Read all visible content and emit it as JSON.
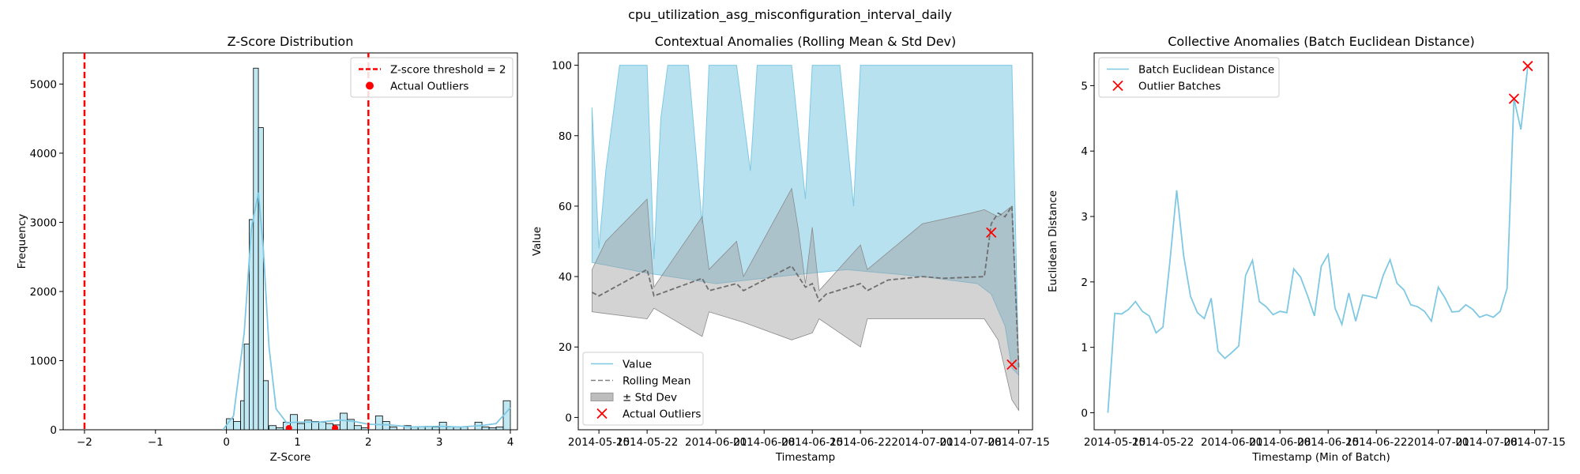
{
  "suptitle": "cpu_utilization_asg_misconfiguration_interval_daily",
  "colors": {
    "series": "#7ec8e3",
    "threshold": "#ff0000",
    "rolling": "#808080",
    "band": "#bdbdbd",
    "outlier": "#ff0000",
    "bar_fill": "#bfe8f2"
  },
  "chart_data": [
    {
      "type": "histogram",
      "title": "Z-Score Distribution",
      "xlabel": "Z-Score",
      "ylabel": "Frequency",
      "xlim": [
        -2.3,
        4.1
      ],
      "ylim": [
        0,
        5450
      ],
      "xticks": [
        -2,
        -1,
        0,
        1,
        2,
        3,
        4
      ],
      "xtick_labels": [
        "−2",
        "−1",
        "0",
        "1",
        "2",
        "3",
        "4"
      ],
      "yticks": [
        0,
        1000,
        2000,
        3000,
        4000,
        5000
      ],
      "bin_width": 0.1,
      "bins": [
        {
          "x0": 0.0,
          "count": 160
        },
        {
          "x0": 0.1,
          "count": 120
        },
        {
          "x0": 0.2,
          "count": 420
        },
        {
          "x0": 0.25,
          "count": 1240
        },
        {
          "x0": 0.32,
          "count": 3040
        },
        {
          "x0": 0.38,
          "count": 5230
        },
        {
          "x0": 0.45,
          "count": 4370
        },
        {
          "x0": 0.52,
          "count": 710
        },
        {
          "x0": 0.6,
          "count": 60
        },
        {
          "x0": 0.7,
          "count": 30
        },
        {
          "x0": 0.8,
          "count": 110
        },
        {
          "x0": 0.9,
          "count": 220
        },
        {
          "x0": 1.0,
          "count": 90
        },
        {
          "x0": 1.1,
          "count": 140
        },
        {
          "x0": 1.2,
          "count": 120
        },
        {
          "x0": 1.3,
          "count": 110
        },
        {
          "x0": 1.4,
          "count": 90
        },
        {
          "x0": 1.5,
          "count": 70
        },
        {
          "x0": 1.6,
          "count": 240
        },
        {
          "x0": 1.7,
          "count": 150
        },
        {
          "x0": 1.8,
          "count": 60
        },
        {
          "x0": 1.9,
          "count": 30
        },
        {
          "x0": 2.1,
          "count": 200
        },
        {
          "x0": 2.2,
          "count": 120
        },
        {
          "x0": 2.3,
          "count": 40
        },
        {
          "x0": 2.5,
          "count": 60
        },
        {
          "x0": 2.6,
          "count": 40
        },
        {
          "x0": 2.7,
          "count": 40
        },
        {
          "x0": 2.8,
          "count": 50
        },
        {
          "x0": 2.9,
          "count": 40
        },
        {
          "x0": 3.0,
          "count": 110
        },
        {
          "x0": 3.1,
          "count": 40
        },
        {
          "x0": 3.2,
          "count": 40
        },
        {
          "x0": 3.3,
          "count": 40
        },
        {
          "x0": 3.5,
          "count": 110
        },
        {
          "x0": 3.6,
          "count": 40
        },
        {
          "x0": 3.7,
          "count": 30
        },
        {
          "x0": 3.8,
          "count": 40
        },
        {
          "x0": 3.9,
          "count": 420
        }
      ],
      "kde": [
        [
          -0.05,
          0
        ],
        [
          0.1,
          200
        ],
        [
          0.25,
          1400
        ],
        [
          0.35,
          2900
        ],
        [
          0.45,
          3430
        ],
        [
          0.52,
          2600
        ],
        [
          0.6,
          1200
        ],
        [
          0.7,
          300
        ],
        [
          0.85,
          100
        ],
        [
          1.0,
          110
        ],
        [
          1.3,
          110
        ],
        [
          1.6,
          140
        ],
        [
          1.8,
          120
        ],
        [
          2.0,
          80
        ],
        [
          2.3,
          70
        ],
        [
          2.6,
          40
        ],
        [
          3.0,
          50
        ],
        [
          3.3,
          40
        ],
        [
          3.6,
          60
        ],
        [
          3.8,
          90
        ],
        [
          3.95,
          260
        ],
        [
          4.0,
          320
        ]
      ],
      "threshold_lines": [
        -2,
        2
      ],
      "outliers_x": [
        0.88,
        1.53
      ],
      "legend": [
        {
          "label": "Z-score threshold = 2",
          "kind": "dashed-line"
        },
        {
          "label": "Actual Outliers",
          "kind": "dot"
        }
      ],
      "legend_position": "upper right"
    },
    {
      "type": "line",
      "title": "Contextual Anomalies (Rolling Mean & Std Dev)",
      "xlabel": "Timestamp",
      "ylabel": "Value",
      "xlim": [
        "2014-05-12",
        "2014-07-17"
      ],
      "ylim": [
        -3.5,
        103.5
      ],
      "yticks": [
        0,
        20,
        40,
        60,
        80,
        100
      ],
      "xticks": [
        "2014-05-15",
        "2014-05-22",
        "2014-06-01",
        "2014-06-08",
        "2014-06-15",
        "2014-06-22",
        "2014-07-01",
        "2014-07-08",
        "2014-07-15"
      ],
      "xtick_labels": [
        "2014-05-15",
        "2014-05-22",
        "2014-06-01",
        "2014-06-08",
        "2014-06-15",
        "2014-06-22",
        "2014-07-01",
        "2014-07-08",
        "2014-07-15"
      ],
      "value_lower": [
        [
          "2014-05-14",
          44
        ],
        [
          "2014-05-22",
          41
        ],
        [
          "2014-06-01",
          38
        ],
        [
          "2014-06-10",
          40
        ],
        [
          "2014-06-20",
          42
        ],
        [
          "2014-07-01",
          40
        ],
        [
          "2014-07-09",
          38
        ],
        [
          "2014-07-11",
          35
        ],
        [
          "2014-07-13",
          26
        ],
        [
          "2014-07-14",
          14
        ],
        [
          "2014-07-15",
          12
        ]
      ],
      "value_upper": [
        [
          "2014-05-14",
          88
        ],
        [
          "2014-05-15",
          48
        ],
        [
          "2014-05-16",
          70
        ],
        [
          "2014-05-18",
          100
        ],
        [
          "2014-05-22",
          100
        ],
        [
          "2014-05-23",
          45
        ],
        [
          "2014-05-24",
          85
        ],
        [
          "2014-05-25",
          100
        ],
        [
          "2014-05-28",
          100
        ],
        [
          "2014-05-30",
          55
        ],
        [
          "2014-05-31",
          100
        ],
        [
          "2014-06-04",
          100
        ],
        [
          "2014-06-06",
          70
        ],
        [
          "2014-06-07",
          100
        ],
        [
          "2014-06-12",
          100
        ],
        [
          "2014-06-14",
          62
        ],
        [
          "2014-06-15",
          100
        ],
        [
          "2014-06-19",
          100
        ],
        [
          "2014-06-21",
          60
        ],
        [
          "2014-06-22",
          100
        ],
        [
          "2014-07-14",
          100
        ],
        [
          "2014-07-15",
          12
        ]
      ],
      "rolling_mean": [
        [
          "2014-05-14",
          35.5
        ],
        [
          "2014-05-15",
          34.5
        ],
        [
          "2014-05-22",
          42
        ],
        [
          "2014-05-23",
          34.5
        ],
        [
          "2014-05-30",
          39.5
        ],
        [
          "2014-05-31",
          36
        ],
        [
          "2014-06-04",
          38
        ],
        [
          "2014-06-05",
          36
        ],
        [
          "2014-06-12",
          43
        ],
        [
          "2014-06-13",
          40
        ],
        [
          "2014-06-14",
          37
        ],
        [
          "2014-06-15",
          38
        ],
        [
          "2014-06-16",
          33
        ],
        [
          "2014-06-17",
          35
        ],
        [
          "2014-06-22",
          38
        ],
        [
          "2014-06-23",
          36
        ],
        [
          "2014-06-26",
          39
        ],
        [
          "2014-07-01",
          40
        ],
        [
          "2014-07-04",
          39.5
        ],
        [
          "2014-07-10",
          40
        ],
        [
          "2014-07-11",
          55
        ],
        [
          "2014-07-12",
          58
        ],
        [
          "2014-07-13",
          57
        ],
        [
          "2014-07-14",
          60
        ],
        [
          "2014-07-15",
          14
        ]
      ],
      "band_upper": [
        [
          "2014-05-14",
          42
        ],
        [
          "2014-05-16",
          50
        ],
        [
          "2014-05-22",
          62
        ],
        [
          "2014-05-23",
          37
        ],
        [
          "2014-05-30",
          57
        ],
        [
          "2014-05-31",
          42
        ],
        [
          "2014-06-04",
          50
        ],
        [
          "2014-06-05",
          40
        ],
        [
          "2014-06-12",
          65
        ],
        [
          "2014-06-13",
          53
        ],
        [
          "2014-06-14",
          38
        ],
        [
          "2014-06-15",
          54
        ],
        [
          "2014-06-16",
          36
        ],
        [
          "2014-06-22",
          49
        ],
        [
          "2014-06-23",
          42
        ],
        [
          "2014-07-01",
          55
        ],
        [
          "2014-07-08",
          58
        ],
        [
          "2014-07-10",
          59
        ],
        [
          "2014-07-12",
          57
        ],
        [
          "2014-07-14",
          60
        ],
        [
          "2014-07-15",
          16
        ]
      ],
      "band_lower": [
        [
          "2014-05-14",
          30
        ],
        [
          "2014-05-22",
          28
        ],
        [
          "2014-05-23",
          31
        ],
        [
          "2014-05-30",
          23
        ],
        [
          "2014-05-31",
          30
        ],
        [
          "2014-06-05",
          27
        ],
        [
          "2014-06-12",
          22
        ],
        [
          "2014-06-15",
          24
        ],
        [
          "2014-06-16",
          28
        ],
        [
          "2014-06-22",
          20
        ],
        [
          "2014-06-23",
          28
        ],
        [
          "2014-07-10",
          28
        ],
        [
          "2014-07-12",
          22
        ],
        [
          "2014-07-14",
          5
        ],
        [
          "2014-07-15",
          2
        ]
      ],
      "outliers": [
        [
          "2014-07-11",
          52.5
        ],
        [
          "2014-07-14",
          15
        ]
      ],
      "legend": [
        {
          "label": "Value",
          "kind": "line"
        },
        {
          "label": "Rolling Mean",
          "kind": "dashed-line"
        },
        {
          "label": "± Std Dev",
          "kind": "patch"
        },
        {
          "label": "Actual Outliers",
          "kind": "x"
        }
      ],
      "legend_position": "lower left"
    },
    {
      "type": "line",
      "title": "Collective Anomalies (Batch Euclidean Distance)",
      "xlabel": "Timestamp (Min of Batch)",
      "ylabel": "Euclidean Distance",
      "xlim": [
        "2014-05-12",
        "2014-07-17"
      ],
      "ylim": [
        -0.26,
        5.5
      ],
      "yticks": [
        0,
        1,
        2,
        3,
        4,
        5
      ],
      "xticks": [
        "2014-05-15",
        "2014-05-22",
        "2014-06-01",
        "2014-06-08",
        "2014-06-15",
        "2014-06-22",
        "2014-07-01",
        "2014-07-08",
        "2014-07-15"
      ],
      "xtick_labels": [
        "2014-05-15",
        "2014-05-22",
        "2014-06-01",
        "2014-06-08",
        "2014-06-15",
        "2014-06-22",
        "2014-07-01",
        "2014-07-08",
        "2014-07-15"
      ],
      "x_step_days": 1,
      "x_start": "2014-05-14",
      "values": [
        0.0,
        1.52,
        1.51,
        1.58,
        1.7,
        1.55,
        1.48,
        1.22,
        1.31,
        2.3,
        3.4,
        2.4,
        1.78,
        1.53,
        1.44,
        1.75,
        0.94,
        0.83,
        0.92,
        1.02,
        2.1,
        2.33,
        1.7,
        1.62,
        1.5,
        1.55,
        1.53,
        2.2,
        2.07,
        1.79,
        1.48,
        2.24,
        2.42,
        1.6,
        1.35,
        1.83,
        1.4,
        1.8,
        1.78,
        1.75,
        2.1,
        2.34,
        1.98,
        1.88,
        1.65,
        1.62,
        1.55,
        1.4,
        1.92,
        1.75,
        1.54,
        1.55,
        1.65,
        1.58,
        1.46,
        1.5,
        1.46,
        1.55,
        1.9,
        4.8,
        4.33,
        5.3
      ],
      "outliers": [
        [
          "2014-07-12",
          4.8
        ],
        [
          "2014-07-14",
          5.3
        ]
      ],
      "legend": [
        {
          "label": "Batch Euclidean Distance",
          "kind": "line"
        },
        {
          "label": "Outlier Batches",
          "kind": "x"
        }
      ],
      "legend_position": "upper left"
    }
  ]
}
